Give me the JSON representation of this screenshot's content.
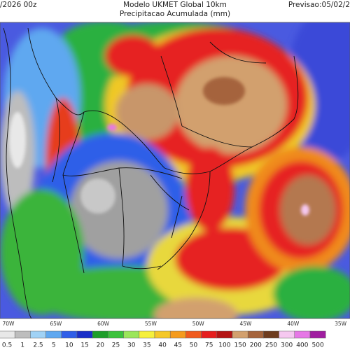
{
  "header": {
    "left": "/2026 00z",
    "title": "Modelo UKMET Global 10km",
    "subtitle": "Precipitacao Acumulada (mm)",
    "right": "Previsao:05/02/2"
  },
  "map": {
    "longitude_labels": [
      "70W",
      "65W",
      "60W",
      "55W",
      "50W",
      "45W",
      "40W",
      "35W"
    ]
  },
  "legend": {
    "levels": [
      0.5,
      1,
      2.5,
      5,
      10,
      15,
      20,
      25,
      30,
      35,
      40,
      45,
      50,
      75,
      100,
      150,
      200,
      250,
      300,
      400,
      500
    ],
    "colors": [
      "#e8e8e8",
      "#bdbdbd",
      "#a0d2f5",
      "#5fa8f0",
      "#2f5ee8",
      "#1a2fc8",
      "#1e9e2a",
      "#3cc23c",
      "#9be65a",
      "#f5f03c",
      "#f5c828",
      "#f59b1e",
      "#f05a1e",
      "#e61e1e",
      "#b41414",
      "#d2a06e",
      "#a5643c",
      "#6e3c1e",
      "#f5c8f0",
      "#e678e6",
      "#a01ea0"
    ]
  }
}
